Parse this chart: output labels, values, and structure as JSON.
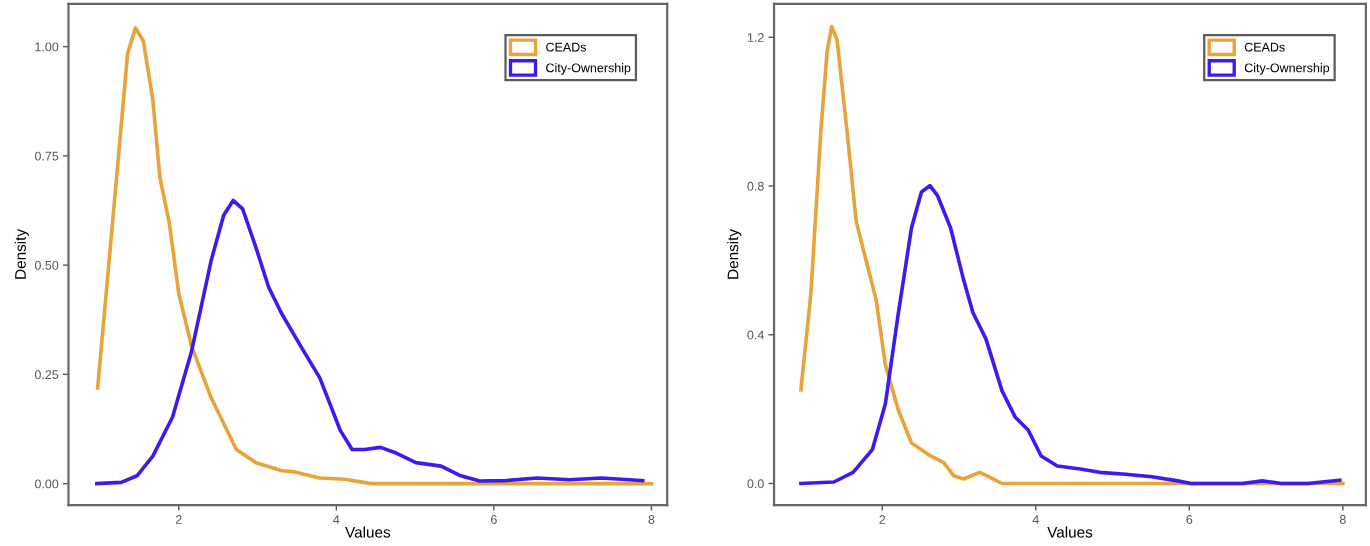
{
  "chart_data": [
    {
      "type": "line",
      "xlabel": "Values",
      "ylabel": "Density",
      "legend": "top right",
      "grid": false,
      "xlim": [
        0.6,
        8.2
      ],
      "ylim": [
        -0.049,
        1.098
      ],
      "xticks": [
        2,
        4,
        6,
        8
      ],
      "yticks": [
        {
          "value": 0,
          "label": "0.00"
        },
        {
          "value": 0.25,
          "label": "0.25"
        },
        {
          "value": 0.5,
          "label": "0.50"
        },
        {
          "value": 0.75,
          "label": "0.75"
        },
        {
          "value": 1,
          "label": "1.00"
        }
      ],
      "series": [
        {
          "name": "CEADs",
          "color": "#e8a33a",
          "x": [
            0.97,
            1.19,
            1.35,
            1.45,
            1.55,
            1.67,
            1.76,
            1.88,
            2.0,
            2.16,
            2.41,
            2.73,
            2.98,
            3.3,
            3.46,
            3.79,
            4.11,
            4.44,
            8.0
          ],
          "values": [
            0.219,
            0.659,
            0.984,
            1.043,
            1.013,
            0.879,
            0.701,
            0.596,
            0.435,
            0.316,
            0.197,
            0.078,
            0.048,
            0.03,
            0.027,
            0.013,
            0.01,
            0.0,
            0.0
          ]
        },
        {
          "name": "City-Ownership",
          "color": "#3a1cf0",
          "x": [
            0.96,
            1.27,
            1.47,
            1.67,
            1.92,
            2.16,
            2.41,
            2.57,
            2.69,
            2.81,
            2.98,
            3.14,
            3.3,
            3.54,
            3.79,
            4.05,
            4.2,
            4.36,
            4.56,
            4.76,
            5.01,
            5.33,
            5.58,
            5.82,
            6.15,
            6.55,
            6.96,
            7.37,
            7.89
          ],
          "values": [
            0,
            0.003,
            0.018,
            0.063,
            0.152,
            0.301,
            0.51,
            0.614,
            0.648,
            0.629,
            0.54,
            0.45,
            0.391,
            0.317,
            0.242,
            0.122,
            0.078,
            0.078,
            0.083,
            0.07,
            0.048,
            0.04,
            0.018,
            0.006,
            0.007,
            0.013,
            0.009,
            0.013,
            0.007
          ]
        }
      ]
    },
    {
      "type": "line",
      "xlabel": "Values",
      "ylabel": "Density",
      "legend": "top right",
      "grid": false,
      "xlim": [
        0.59,
        8.3
      ],
      "ylim": [
        -0.058,
        1.29
      ],
      "xticks": [
        2,
        4,
        6,
        8
      ],
      "yticks": [
        {
          "value": 0,
          "label": "0.0"
        },
        {
          "value": 0.4,
          "label": "0.4"
        },
        {
          "value": 0.8,
          "label": "0.8"
        },
        {
          "value": 1.2,
          "label": "1.2"
        }
      ],
      "series": [
        {
          "name": "CEADs",
          "color": "#e8a33a",
          "x": [
            0.94,
            1.07,
            1.2,
            1.28,
            1.34,
            1.41,
            1.54,
            1.66,
            1.79,
            1.92,
            2.04,
            2.21,
            2.38,
            2.63,
            2.8,
            2.93,
            3.06,
            3.27,
            3.39,
            3.56,
            8.0
          ],
          "values": [
            0.252,
            0.511,
            0.949,
            1.159,
            1.229,
            1.194,
            0.949,
            0.705,
            0.599,
            0.494,
            0.319,
            0.197,
            0.109,
            0.074,
            0.056,
            0.021,
            0.012,
            0.03,
            0.018,
            0,
            0
          ]
        },
        {
          "name": "City-Ownership",
          "color": "#3a1cf0",
          "x": [
            0.94,
            1.37,
            1.62,
            1.87,
            2.04,
            2.21,
            2.38,
            2.51,
            2.62,
            2.72,
            2.89,
            3.06,
            3.18,
            3.35,
            3.56,
            3.73,
            3.9,
            4.07,
            4.28,
            4.58,
            4.83,
            5.17,
            5.51,
            5.85,
            6.02,
            6.69,
            6.95,
            7.2,
            7.54,
            7.96
          ],
          "values": [
            0,
            0.004,
            0.03,
            0.091,
            0.214,
            0.459,
            0.687,
            0.784,
            0.801,
            0.774,
            0.687,
            0.547,
            0.46,
            0.389,
            0.249,
            0.179,
            0.144,
            0.074,
            0.047,
            0.039,
            0.03,
            0.025,
            0.018,
            0.007,
            0,
            0,
            0.007,
            0,
            0,
            0.009
          ]
        }
      ]
    }
  ]
}
